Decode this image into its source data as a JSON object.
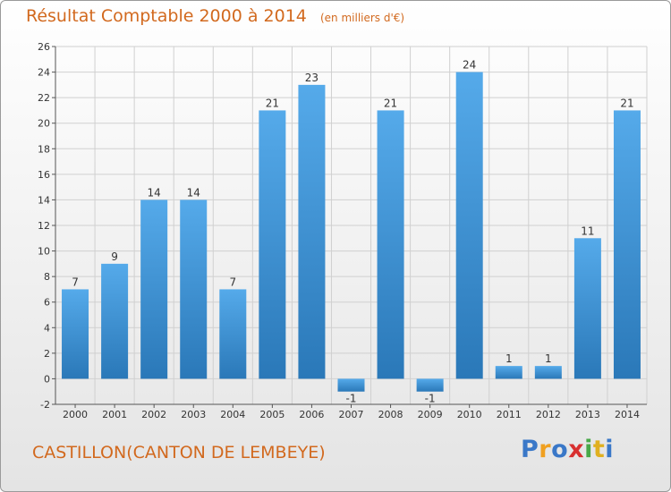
{
  "title": "Résultat Comptable 2000 à 2014",
  "subtitle": "(en milliers d'€)",
  "footer_text": "CASTILLON(CANTON DE LEMBEYE)",
  "logo": {
    "letters": [
      "P",
      "r",
      "o",
      "x",
      "i",
      "t",
      "i"
    ],
    "colors": [
      "#3a78c8",
      "#f0a020",
      "#3a78c8",
      "#d83030",
      "#48a848",
      "#e0b020",
      "#3a78c8"
    ]
  },
  "colors": {
    "bar_top": "#55aaea",
    "bar_bottom": "#2a78b8",
    "text": "#d2691e",
    "grid": "#d0d0d0"
  },
  "chart_data": {
    "type": "bar",
    "title": "Résultat Comptable 2000 à 2014",
    "xlabel": "",
    "ylabel": "",
    "categories": [
      "2000",
      "2001",
      "2002",
      "2003",
      "2004",
      "2005",
      "2006",
      "2007",
      "2008",
      "2009",
      "2010",
      "2011",
      "2012",
      "2013",
      "2014"
    ],
    "values": [
      7,
      9,
      14,
      14,
      7,
      21,
      23,
      -1,
      21,
      -1,
      24,
      1,
      1,
      11,
      21
    ],
    "ylim": [
      -2,
      26
    ],
    "yticks": [
      -2,
      0,
      2,
      4,
      6,
      8,
      10,
      12,
      14,
      16,
      18,
      20,
      22,
      24,
      26
    ],
    "grid": true,
    "legend": "none"
  }
}
